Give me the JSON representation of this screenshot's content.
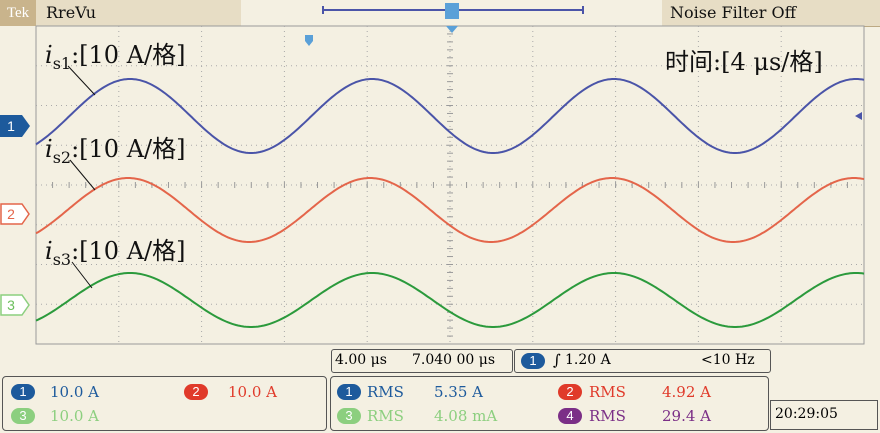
{
  "brand": "Tek",
  "mode": "RreVu",
  "noise_filter": "Noise Filter Off",
  "time_label": "时间:[4 μs/格]",
  "colors": {
    "ch1": "#4a54a8",
    "ch2": "#e4654a",
    "ch3": "#2b9a3c",
    "ch4": "#7b2f87",
    "ch1_badge": "#1d5a9c",
    "ch2_badge": "#e03a2a",
    "ch3_badge": "#8ccf7f",
    "ch4_badge": "#7b2f87"
  },
  "channels": [
    {
      "num": "1",
      "label_var": "i",
      "label_sub": "s1",
      "label_rest": ":[10 A/格]",
      "scale": "10.0 A"
    },
    {
      "num": "2",
      "label_var": "i",
      "label_sub": "s2",
      "label_rest": ":[10 A/格]",
      "scale": "10.0 A"
    },
    {
      "num": "3",
      "label_var": "i",
      "label_sub": "s3",
      "label_rest": ":[10 A/格]",
      "scale": "10.0 A"
    }
  ],
  "timebase": {
    "per_div": "4.00 μs",
    "position": "7.040 00 μs"
  },
  "trigger": {
    "channel": "1",
    "symbol": "∫",
    "level": "1.20 A",
    "freq": "<10 Hz"
  },
  "measurements": [
    {
      "channel": "1",
      "type": "RMS",
      "value": "5.35 A"
    },
    {
      "channel": "2",
      "type": "RMS",
      "value": "4.92 A"
    },
    {
      "channel": "3",
      "type": "RMS",
      "value": "4.08 mA"
    },
    {
      "channel": "4",
      "type": "RMS",
      "value": "29.4 A"
    }
  ],
  "clock": "20:29:05"
}
